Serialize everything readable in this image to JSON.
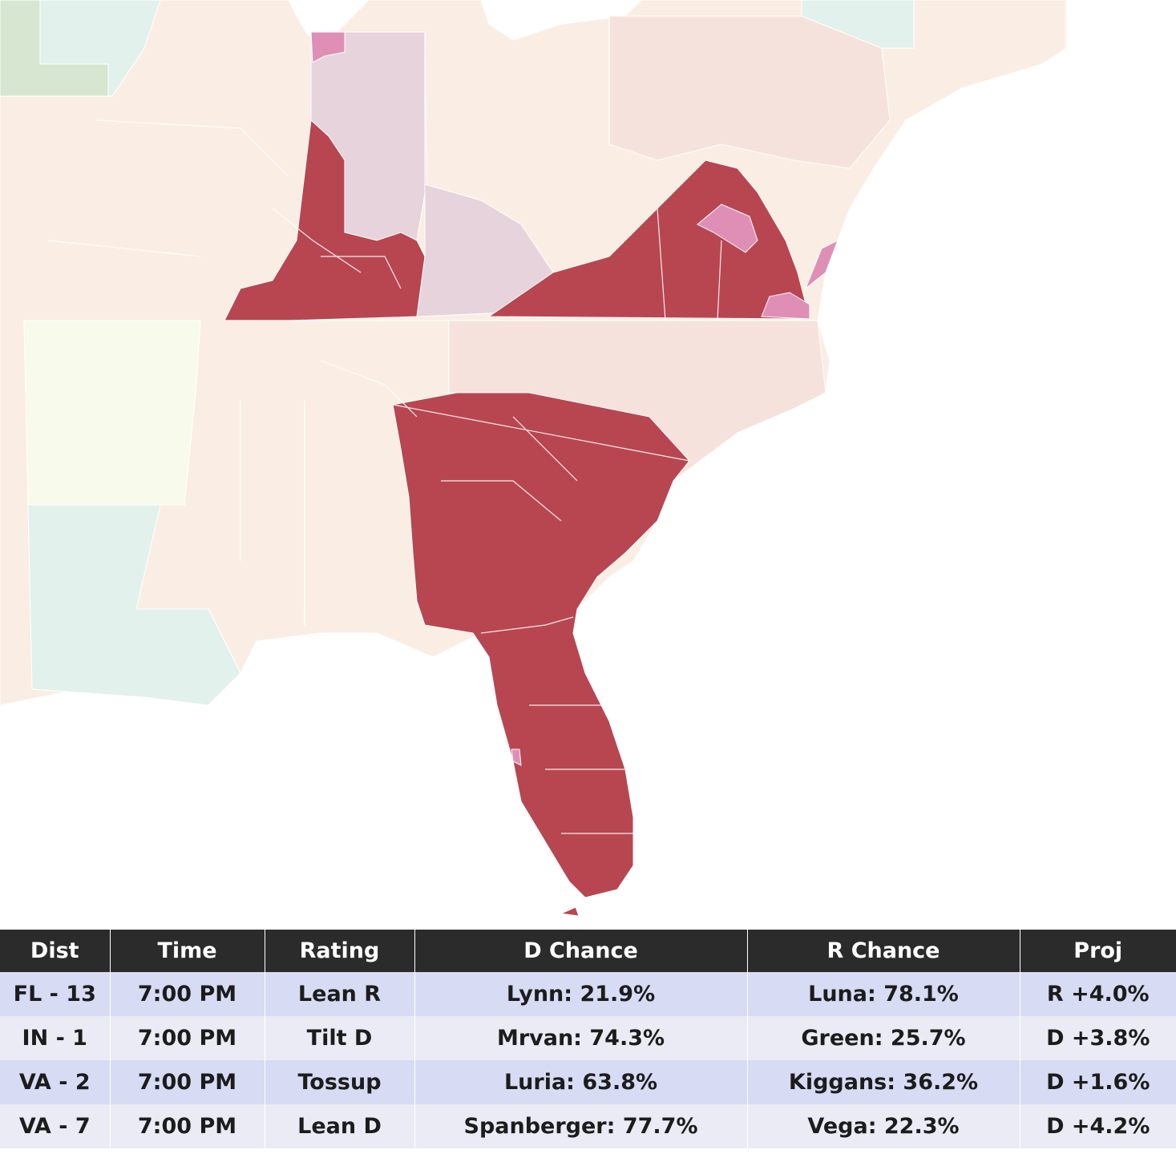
{
  "map": {
    "colors": {
      "water": "#ffffff",
      "safe_r": "#b84651",
      "tossup_pink": "#df8fb5",
      "lean_d_mauve": "#e6d3dc",
      "background_r": "#faeee4",
      "background_r_dark": "#f6e2dc",
      "background_d": "#e2f1ec",
      "background_neutral": "#f8fbec",
      "background_green": "#d7e6d0"
    }
  },
  "table": {
    "headers": [
      "Dist",
      "Time",
      "Rating",
      "D Chance",
      "R Chance",
      "Proj"
    ],
    "rows": [
      [
        "FL - 13",
        "7:00 PM",
        "Lean R",
        "Lynn: 21.9%",
        "Luna: 78.1%",
        "R +4.0%"
      ],
      [
        "IN - 1",
        "7:00 PM",
        "Tilt D",
        "Mrvan: 74.3%",
        "Green: 25.7%",
        "D +3.8%"
      ],
      [
        "VA - 2",
        "7:00 PM",
        "Tossup",
        "Luria: 63.8%",
        "Kiggans: 36.2%",
        "D +1.6%"
      ],
      [
        "VA - 7",
        "7:00 PM",
        "Lean D",
        "Spanberger: 77.7%",
        "Vega: 22.3%",
        "D +4.2%"
      ]
    ]
  }
}
